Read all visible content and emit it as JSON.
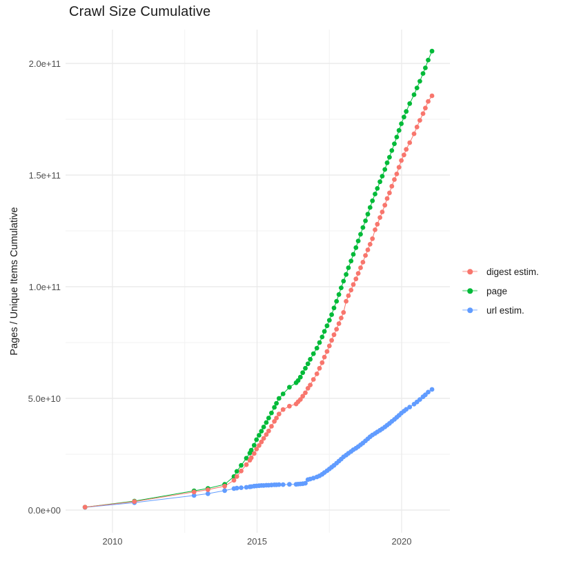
{
  "title": "Crawl Size Cumulative",
  "colors": {
    "digest": "#F8766D",
    "page": "#00BA38",
    "url": "#619CFF",
    "grid_major": "#E8E8E8",
    "grid_minor": "#F2F2F2",
    "tick_label": "#4D4D4D",
    "text": "#1A1A1A",
    "background": "#FFFFFF"
  },
  "chart_data": {
    "type": "scatter",
    "title": "Crawl Size Cumulative",
    "xlabel": "",
    "ylabel": "Pages / Unique Items Cumulative",
    "grid": true,
    "legend_position": "right",
    "xlim": [
      2008.4,
      2021.6
    ],
    "ylim_e9": [
      -10.5,
      215.5
    ],
    "x_major_ticks": [
      2010,
      2015,
      2020
    ],
    "x_major_tick_labels": [
      "2010",
      "2015",
      "2020"
    ],
    "x_minor_ticks": [
      2012.5,
      2017.5
    ],
    "y_major_ticks_e9": [
      0,
      50,
      100,
      150,
      200
    ],
    "y_major_tick_labels": [
      "0.0e+00",
      "5.0e+10",
      "1.0e+11",
      "1.5e+11",
      "2.0e+11"
    ],
    "y_minor_ticks_e9": [
      25,
      75,
      125,
      175
    ],
    "y_unit_note": "values in billions (1e9)",
    "x": [
      2009.05,
      2010.76,
      2012.82,
      2013.3,
      2013.88,
      2014.2,
      2014.3,
      2014.45,
      2014.63,
      2014.75,
      2014.8,
      2014.9,
      2014.98,
      2015.07,
      2015.15,
      2015.23,
      2015.32,
      2015.4,
      2015.5,
      2015.6,
      2015.67,
      2015.76,
      2015.9,
      2016.12,
      2016.35,
      2016.42,
      2016.5,
      2016.58,
      2016.67,
      2016.76,
      2016.84,
      2016.95,
      2017.07,
      2017.16,
      2017.25,
      2017.33,
      2017.42,
      2017.5,
      2017.58,
      2017.66,
      2017.75,
      2017.83,
      2017.91,
      2017.99,
      2018.08,
      2018.16,
      2018.25,
      2018.33,
      2018.42,
      2018.5,
      2018.58,
      2018.66,
      2018.75,
      2018.83,
      2018.91,
      2018.99,
      2019.08,
      2019.16,
      2019.25,
      2019.33,
      2019.42,
      2019.5,
      2019.58,
      2019.66,
      2019.75,
      2019.83,
      2019.91,
      2019.99,
      2020.08,
      2020.16,
      2020.28,
      2020.43,
      2020.53,
      2020.63,
      2020.74,
      2020.82,
      2020.92,
      2021.05
    ],
    "series": [
      {
        "name": "digest estim.",
        "color": "#F8766D",
        "y_e9": [
          1.3,
          3.8,
          8.1,
          9.1,
          10.7,
          13.3,
          15.0,
          17.5,
          20.3,
          22.3,
          23.4,
          25.3,
          27.3,
          28.9,
          30.5,
          32.1,
          33.8,
          35.4,
          37.5,
          39.7,
          41.2,
          43.0,
          45.0,
          46.5,
          47.5,
          48.5,
          49.5,
          51.0,
          52.5,
          54.5,
          56.0,
          58.5,
          61.0,
          63.5,
          66.0,
          68.5,
          71.0,
          73.5,
          76.0,
          78.5,
          81.0,
          83.5,
          86.0,
          88.5,
          93.5,
          96.0,
          98.5,
          101.0,
          103.5,
          106.0,
          108.5,
          111.0,
          114.0,
          116.5,
          119.0,
          121.5,
          125.5,
          128.0,
          131.0,
          133.5,
          136.5,
          139.5,
          142.0,
          145.0,
          148.0,
          150.5,
          153.5,
          156.5,
          159.0,
          161.5,
          164.5,
          168.5,
          171.5,
          174.5,
          177.5,
          180.0,
          183.0,
          185.5
        ]
      },
      {
        "name": "page",
        "color": "#00BA38",
        "y_e9": [
          1.3,
          4.0,
          8.6,
          9.7,
          11.5,
          15.0,
          17.3,
          20.0,
          23.2,
          25.5,
          26.8,
          29.0,
          31.5,
          33.5,
          35.3,
          37.2,
          39.2,
          41.2,
          43.5,
          46.0,
          47.8,
          50.0,
          52.0,
          55.0,
          57.0,
          58.0,
          59.5,
          61.5,
          63.5,
          65.5,
          67.5,
          70.0,
          72.5,
          75.0,
          77.5,
          80.0,
          82.5,
          85.0,
          87.5,
          90.5,
          93.5,
          96.5,
          99.5,
          102.5,
          105.5,
          108.5,
          111.5,
          114.5,
          117.5,
          120.5,
          123.5,
          126.5,
          129.5,
          132.5,
          135.5,
          138.5,
          141.5,
          144.0,
          147.0,
          149.5,
          152.5,
          155.5,
          158.0,
          161.0,
          164.0,
          167.0,
          170.0,
          173.0,
          176.0,
          178.5,
          182.0,
          186.0,
          189.0,
          192.0,
          195.5,
          198.0,
          201.5,
          205.5
        ]
      },
      {
        "name": "url estim.",
        "color": "#619CFF",
        "y_e9": [
          1.2,
          3.3,
          6.5,
          7.3,
          8.7,
          9.6,
          9.8,
          10.0,
          10.2,
          10.4,
          10.5,
          10.7,
          10.8,
          10.9,
          11.0,
          11.0,
          11.1,
          11.1,
          11.2,
          11.3,
          11.3,
          11.4,
          11.4,
          11.5,
          11.5,
          11.6,
          11.7,
          11.8,
          12.0,
          13.6,
          13.9,
          14.3,
          14.8,
          15.3,
          16.0,
          16.8,
          17.6,
          18.4,
          19.2,
          20.0,
          21.0,
          21.9,
          22.8,
          23.8,
          24.6,
          25.4,
          26.2,
          27.0,
          27.7,
          28.4,
          29.2,
          30.0,
          31.0,
          31.9,
          32.8,
          33.6,
          34.3,
          35.0,
          35.7,
          36.4,
          37.2,
          38.0,
          38.8,
          39.7,
          40.6,
          41.5,
          42.4,
          43.4,
          44.3,
          45.1,
          46.1,
          47.4,
          48.4,
          49.5,
          50.7,
          51.6,
          52.8,
          54.0
        ]
      }
    ],
    "draw_order": [
      2,
      1,
      0
    ],
    "point_radius": 3.4,
    "line_width": 1
  },
  "legend": {
    "items": [
      {
        "label": "digest estim."
      },
      {
        "label": "page"
      },
      {
        "label": "url estim."
      }
    ]
  }
}
